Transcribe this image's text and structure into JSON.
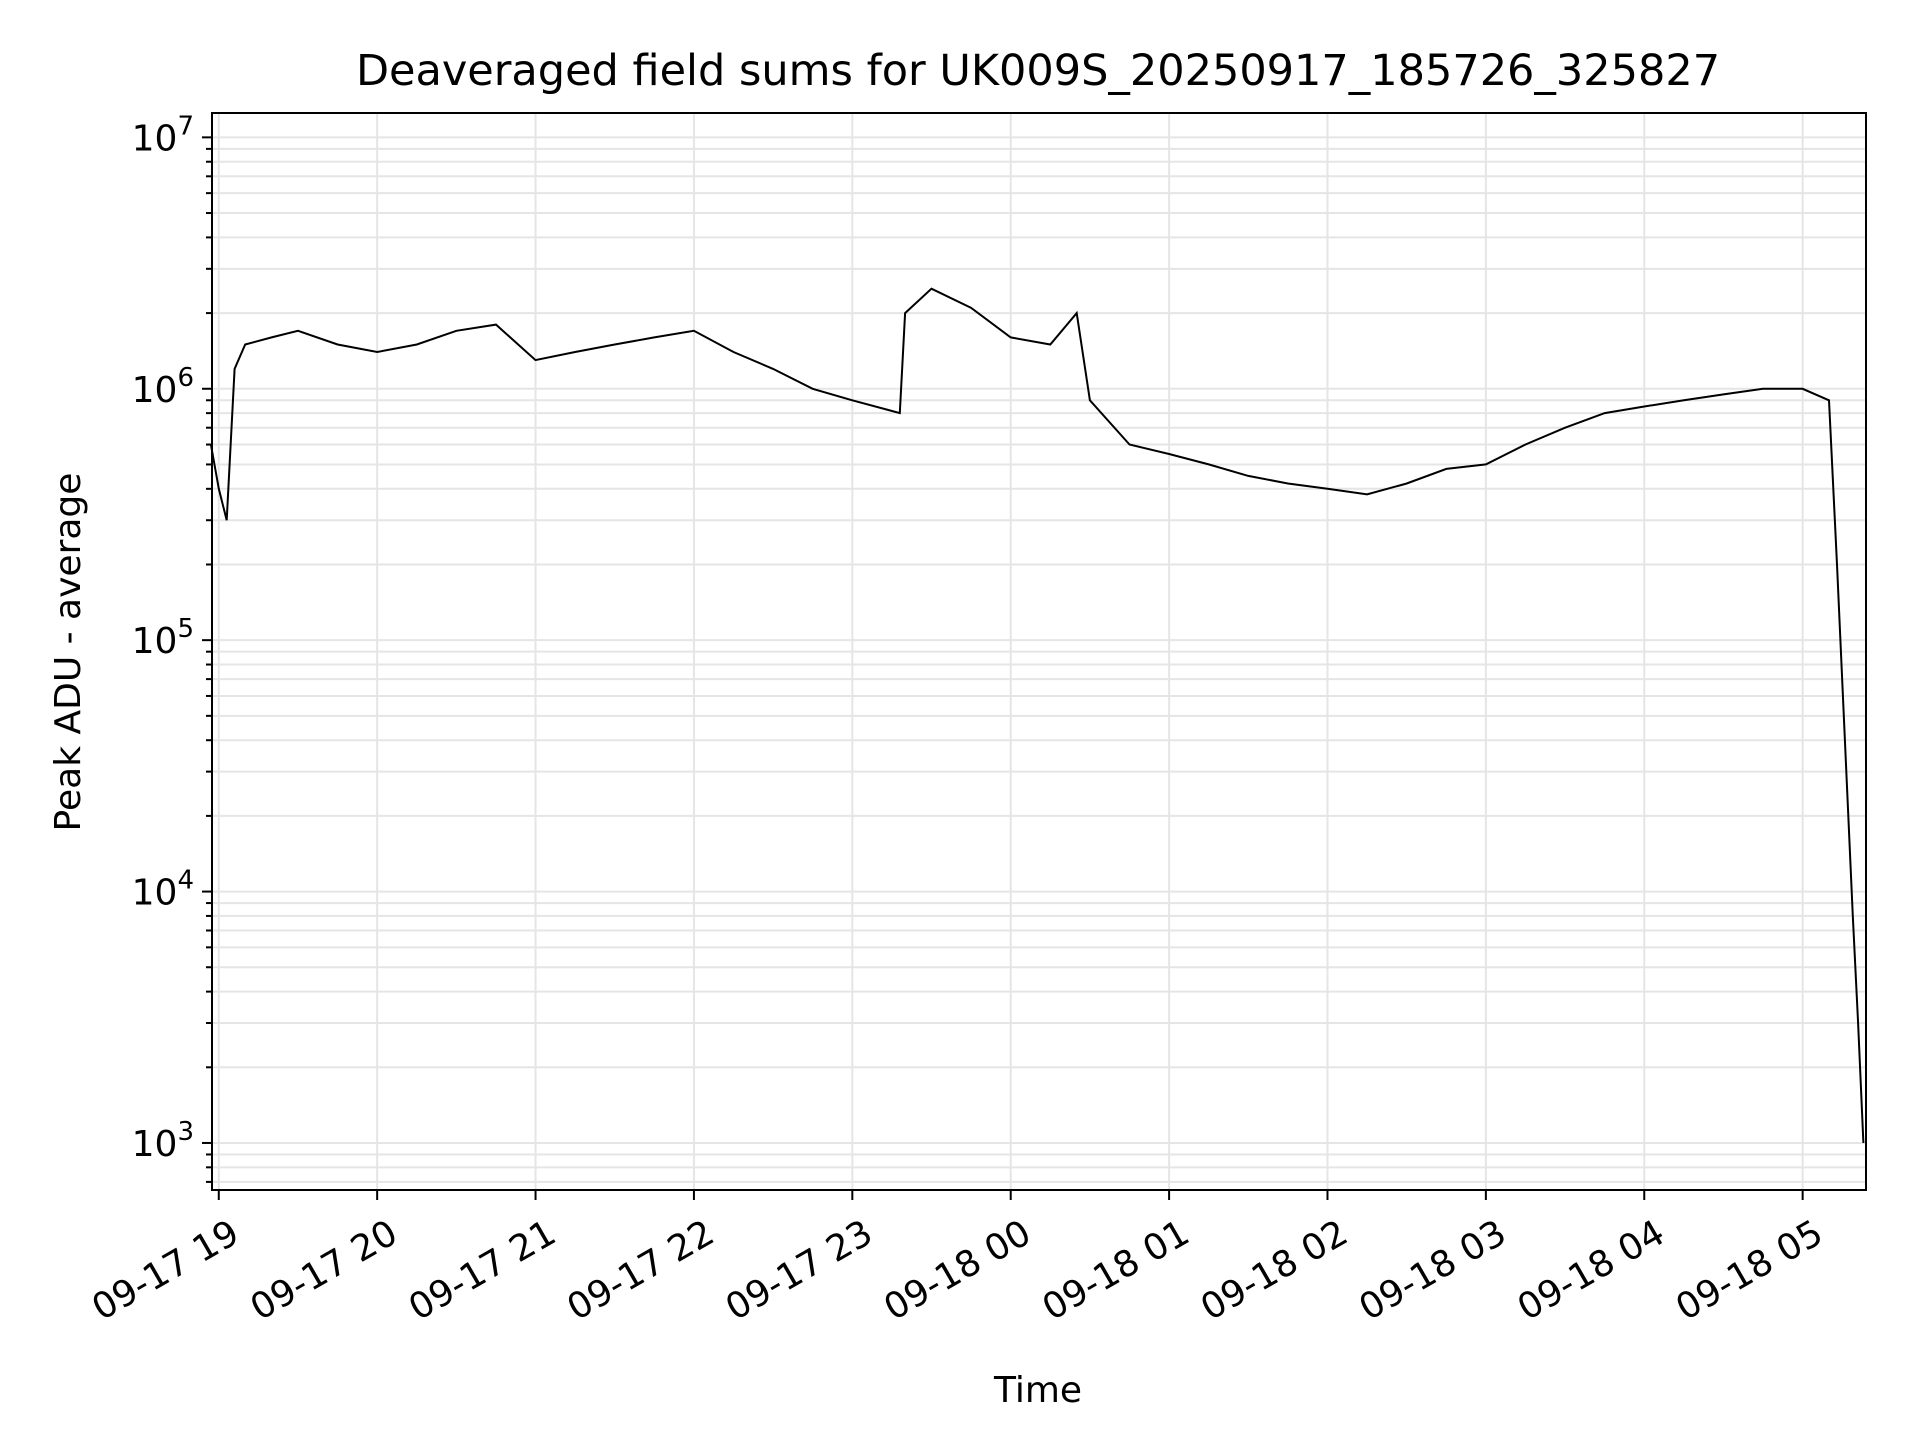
{
  "chart_data": {
    "type": "line",
    "title": "Deaveraged field sums for UK009S_20250917_185726_325827",
    "xlabel": "Time",
    "ylabel": "Peak ADU - average",
    "yscale": "log",
    "ylim": [
      650,
      12500000
    ],
    "xlim": [
      "2025-09-17 18:57:26",
      "2025-09-18 05:24:00"
    ],
    "grid": true,
    "line_color": "#000000",
    "grid_color": "#e5e5e5",
    "x_ticks": [
      {
        "label": "09-17 19",
        "time": "2025-09-17 19:00"
      },
      {
        "label": "09-17 20",
        "time": "2025-09-17 20:00"
      },
      {
        "label": "09-17 21",
        "time": "2025-09-17 21:00"
      },
      {
        "label": "09-17 22",
        "time": "2025-09-17 22:00"
      },
      {
        "label": "09-17 23",
        "time": "2025-09-17 23:00"
      },
      {
        "label": "09-18 00",
        "time": "2025-09-18 00:00"
      },
      {
        "label": "09-18 01",
        "time": "2025-09-18 01:00"
      },
      {
        "label": "09-18 02",
        "time": "2025-09-18 02:00"
      },
      {
        "label": "09-18 03",
        "time": "2025-09-18 03:00"
      },
      {
        "label": "09-18 04",
        "time": "2025-09-18 04:00"
      },
      {
        "label": "09-18 05",
        "time": "2025-09-18 05:00"
      }
    ],
    "y_ticks": [
      {
        "base": "10",
        "exp": "3",
        "value": 1000
      },
      {
        "base": "10",
        "exp": "4",
        "value": 10000
      },
      {
        "base": "10",
        "exp": "5",
        "value": 100000
      },
      {
        "base": "10",
        "exp": "6",
        "value": 1000000
      },
      {
        "base": "10",
        "exp": "7",
        "value": 10000000
      }
    ],
    "series": [
      {
        "points": [
          [
            "2025-09-17 18:57",
            600000
          ],
          [
            "2025-09-17 19:00",
            400000
          ],
          [
            "2025-09-17 19:03",
            300000
          ],
          [
            "2025-09-17 19:06",
            1200000
          ],
          [
            "2025-09-17 19:10",
            1500000
          ],
          [
            "2025-09-17 19:20",
            1600000
          ],
          [
            "2025-09-17 19:30",
            1700000
          ],
          [
            "2025-09-17 19:45",
            1500000
          ],
          [
            "2025-09-17 20:00",
            1400000
          ],
          [
            "2025-09-17 20:15",
            1500000
          ],
          [
            "2025-09-17 20:30",
            1700000
          ],
          [
            "2025-09-17 20:45",
            1800000
          ],
          [
            "2025-09-17 21:00",
            1300000
          ],
          [
            "2025-09-17 21:15",
            1400000
          ],
          [
            "2025-09-17 21:30",
            1500000
          ],
          [
            "2025-09-17 21:45",
            1600000
          ],
          [
            "2025-09-17 22:00",
            1700000
          ],
          [
            "2025-09-17 22:15",
            1400000
          ],
          [
            "2025-09-17 22:30",
            1200000
          ],
          [
            "2025-09-17 22:45",
            1000000
          ],
          [
            "2025-09-17 23:00",
            900000
          ],
          [
            "2025-09-17 23:18",
            800000
          ],
          [
            "2025-09-17 23:20",
            2000000
          ],
          [
            "2025-09-17 23:30",
            2500000
          ],
          [
            "2025-09-17 23:45",
            2100000
          ],
          [
            "2025-09-18 00:00",
            1600000
          ],
          [
            "2025-09-18 00:15",
            1500000
          ],
          [
            "2025-09-18 00:25",
            2000000
          ],
          [
            "2025-09-18 00:30",
            900000
          ],
          [
            "2025-09-18 00:45",
            600000
          ],
          [
            "2025-09-18 01:00",
            550000
          ],
          [
            "2025-09-18 01:15",
            500000
          ],
          [
            "2025-09-18 01:30",
            450000
          ],
          [
            "2025-09-18 01:45",
            420000
          ],
          [
            "2025-09-18 02:00",
            400000
          ],
          [
            "2025-09-18 02:15",
            380000
          ],
          [
            "2025-09-18 02:30",
            420000
          ],
          [
            "2025-09-18 02:45",
            480000
          ],
          [
            "2025-09-18 03:00",
            500000
          ],
          [
            "2025-09-18 03:15",
            600000
          ],
          [
            "2025-09-18 03:30",
            700000
          ],
          [
            "2025-09-18 03:45",
            800000
          ],
          [
            "2025-09-18 04:00",
            850000
          ],
          [
            "2025-09-18 04:15",
            900000
          ],
          [
            "2025-09-18 04:30",
            950000
          ],
          [
            "2025-09-18 04:45",
            1000000
          ],
          [
            "2025-09-18 05:00",
            1000000
          ],
          [
            "2025-09-18 05:10",
            900000
          ],
          [
            "2025-09-18 05:13",
            200000
          ],
          [
            "2025-09-18 05:16",
            40000
          ],
          [
            "2025-09-18 05:19",
            8000
          ],
          [
            "2025-09-18 05:21",
            3000
          ],
          [
            "2025-09-18 05:23",
            1000
          ]
        ]
      }
    ]
  }
}
